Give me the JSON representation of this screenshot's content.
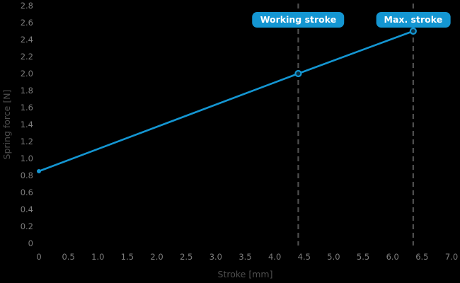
{
  "chart_data": {
    "type": "line",
    "title": "",
    "xlabel": "Stroke [mm]",
    "ylabel": "Spring force [N]",
    "xlim": [
      0,
      7.0
    ],
    "ylim": [
      0,
      2.8
    ],
    "x_ticks": [
      "0",
      "0.5",
      "1.0",
      "1.5",
      "2.0",
      "2.5",
      "3.0",
      "3.5",
      "4.0",
      "4.5",
      "5.0",
      "5.5",
      "6.0",
      "6.5",
      "7.0"
    ],
    "x_tick_values": [
      0,
      0.5,
      1.0,
      1.5,
      2.0,
      2.5,
      3.0,
      3.5,
      4.0,
      4.5,
      5.0,
      5.5,
      6.0,
      6.5,
      7.0
    ],
    "y_ticks": [
      "0",
      "0.2",
      "0.4",
      "0.6",
      "0.8",
      "1.0",
      "1.2",
      "1.4",
      "1.6",
      "1.8",
      "2.0",
      "2.2",
      "2.4",
      "2.6",
      "2.8"
    ],
    "y_tick_values": [
      0,
      0.2,
      0.4,
      0.6,
      0.8,
      1.0,
      1.2,
      1.4,
      1.6,
      1.8,
      2.0,
      2.2,
      2.4,
      2.6,
      2.8
    ],
    "grid": false,
    "legend": false,
    "series": [
      {
        "name": "spring-force-line",
        "points": [
          [
            0,
            0.85
          ],
          [
            4.4,
            2.0
          ],
          [
            6.35,
            2.5
          ]
        ],
        "color": "#1496d2",
        "marker_points": [
          [
            4.4,
            2.0
          ],
          [
            6.35,
            2.5
          ]
        ],
        "start_point": [
          0,
          0.85
        ]
      }
    ],
    "annotations": [
      {
        "label": "Working stroke",
        "x": 4.4
      },
      {
        "label": "Max. stroke",
        "x": 6.35
      }
    ],
    "colors": {
      "background": "#000000",
      "line": "#1496d2",
      "label_box": "#1496d2",
      "label_text": "#ffffff",
      "tick_text": "#7d7d7d",
      "axis_title_text": "#4f4f4f",
      "dashed_line": "#4f4f4f"
    }
  }
}
